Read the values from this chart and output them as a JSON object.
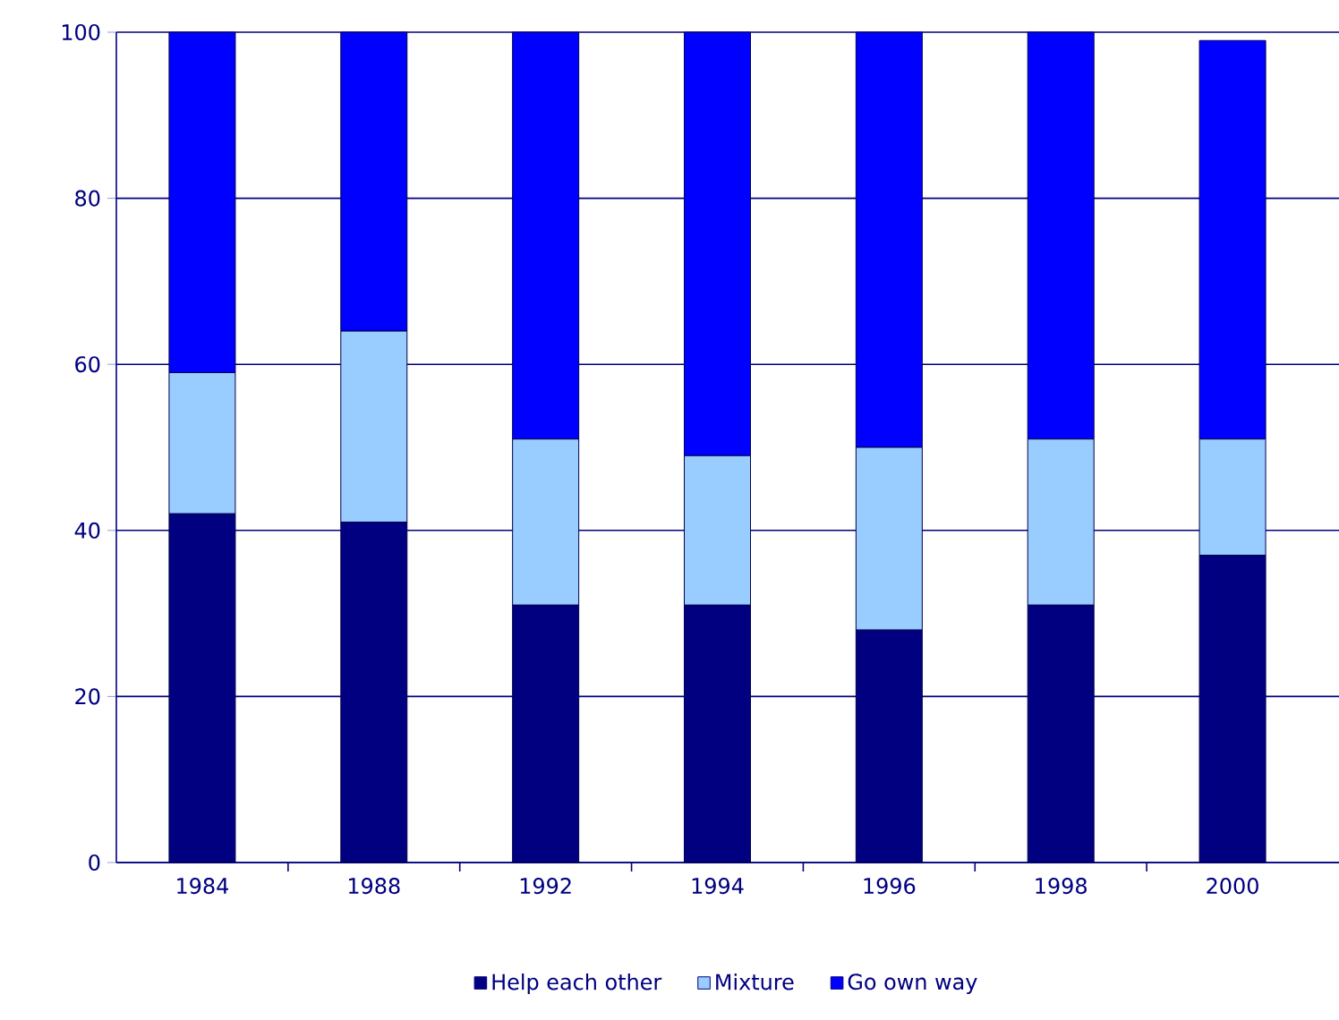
{
  "chart_data": {
    "type": "bar",
    "stacked": true,
    "categories": [
      "1984",
      "1988",
      "1992",
      "1994",
      "1996",
      "1998",
      "2000"
    ],
    "series": [
      {
        "name": "Help each  other",
        "color": "#000080",
        "values": [
          42,
          41,
          31,
          31,
          28,
          31,
          37
        ]
      },
      {
        "name": "Mixture",
        "color": "#99ccff",
        "values": [
          17,
          23,
          20,
          18,
          22,
          20,
          14
        ]
      },
      {
        "name": "Go own way",
        "color": "#0000ff",
        "values": [
          41,
          36,
          49,
          51,
          50,
          49,
          48
        ]
      }
    ],
    "ylim": [
      0,
      100
    ],
    "yticks": [
      0,
      20,
      40,
      60,
      80,
      100
    ],
    "grid": "y",
    "legend": "bottom"
  }
}
